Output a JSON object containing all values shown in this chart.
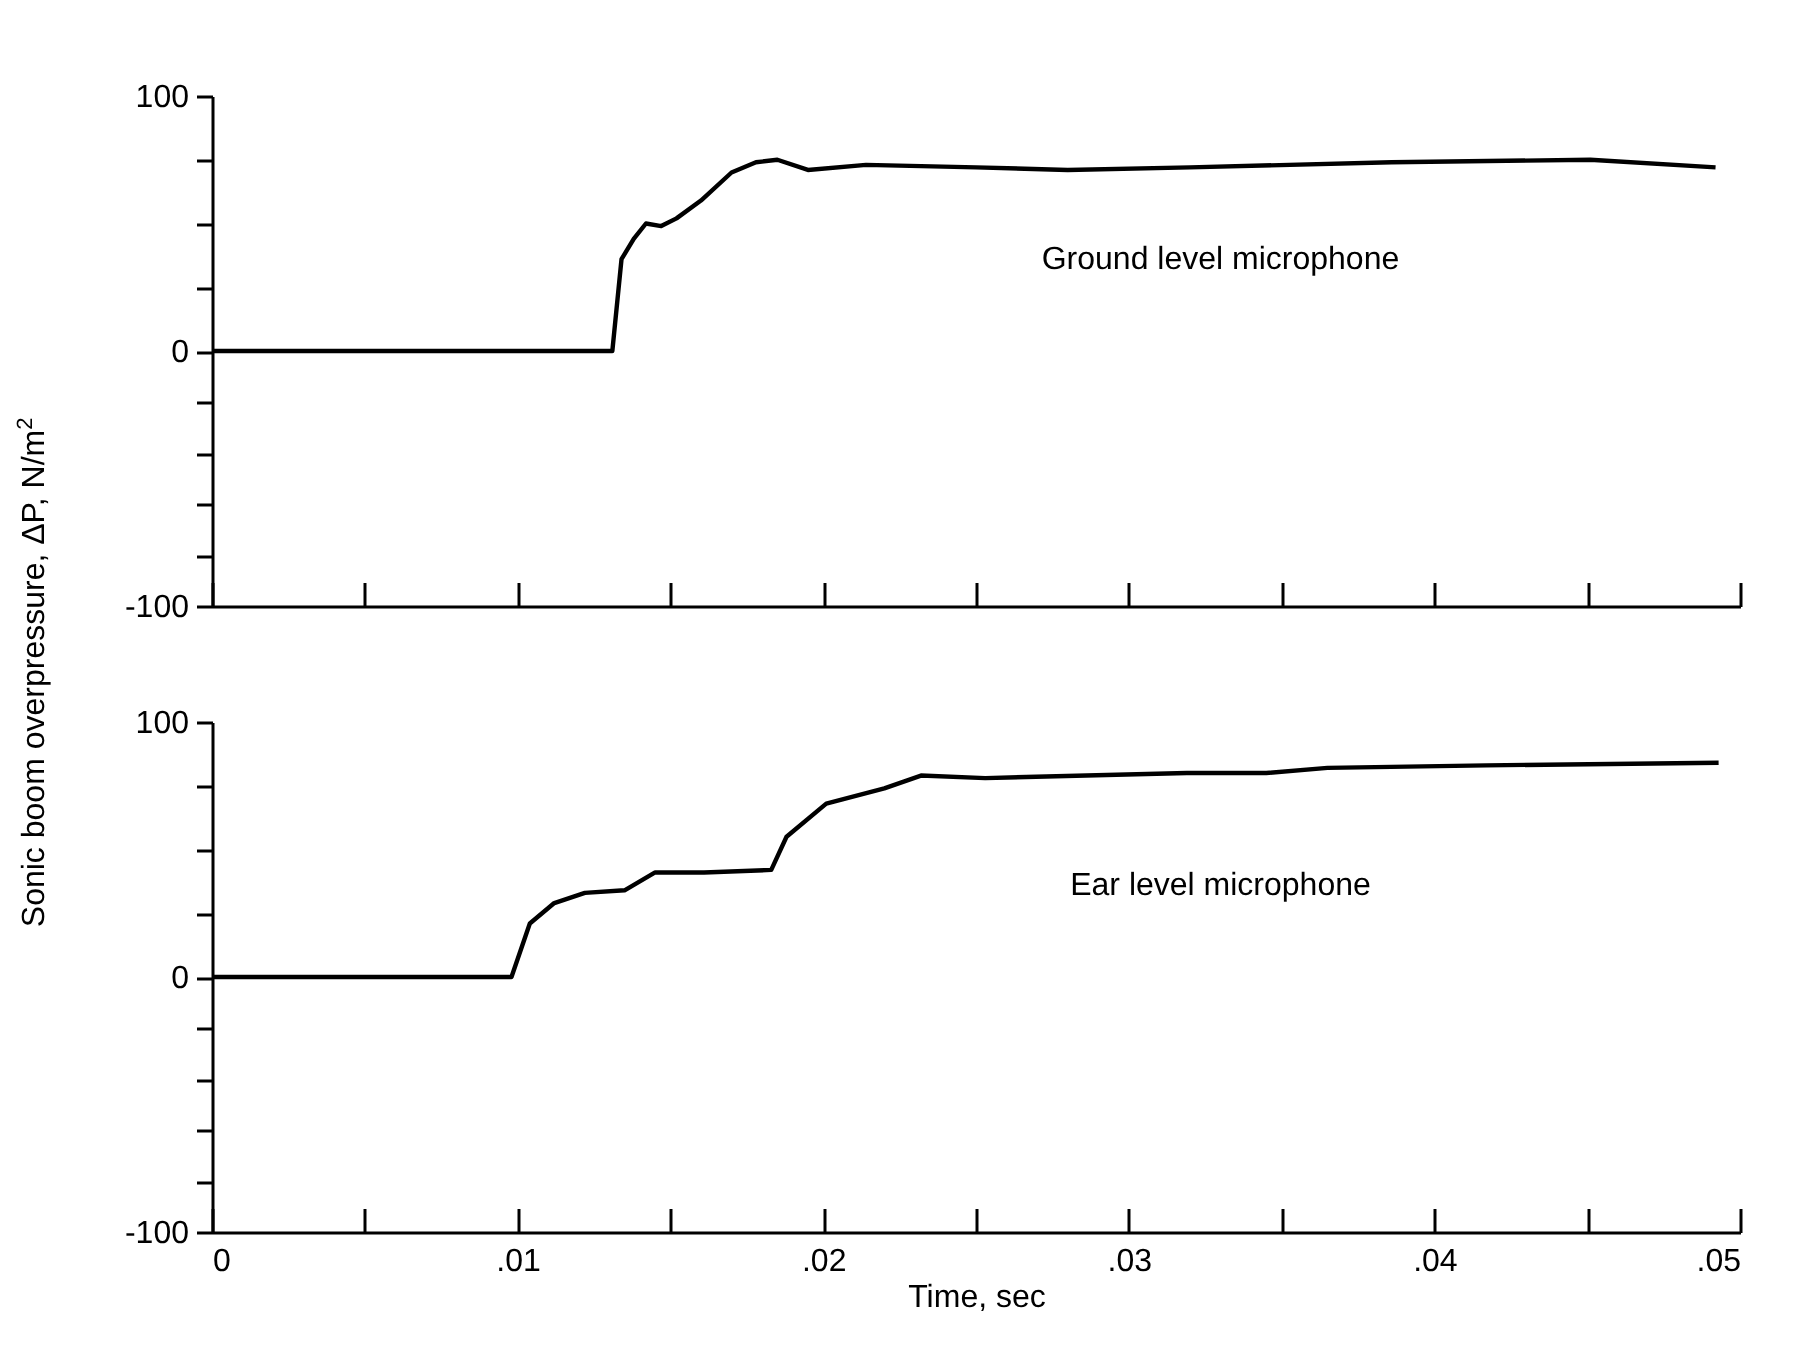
{
  "chart_data": [
    {
      "type": "line",
      "xlim": [
        0,
        0.05
      ],
      "ylim": [
        -100,
        100
      ],
      "xticks": [
        {
          "value": 0,
          "label": null
        },
        {
          "value": 0.005,
          "label": null
        },
        {
          "value": 0.01,
          "label": null
        },
        {
          "value": 0.015,
          "label": null
        },
        {
          "value": 0.02,
          "label": null
        },
        {
          "value": 0.025,
          "label": null
        },
        {
          "value": 0.03,
          "label": null
        },
        {
          "value": 0.035,
          "label": null
        },
        {
          "value": 0.04,
          "label": null
        },
        {
          "value": 0.045,
          "label": null
        },
        {
          "value": 0.05,
          "label": null
        }
      ],
      "yticks": [
        -100,
        {
          "value": -80,
          "label": null
        },
        {
          "value": -60,
          "label": null
        },
        {
          "value": -40,
          "label": null
        },
        {
          "value": -20,
          "label": null
        },
        0,
        {
          "value": 25,
          "label": null
        },
        {
          "value": 50,
          "label": null
        },
        {
          "value": 75,
          "label": null
        },
        100
      ],
      "tick_labels": "y",
      "ylabel": "Sonic boom overpressure, ΔP, N/m$^{2}$",
      "grid": false,
      "color": "#000000",
      "annotations": [
        "Ground level microphone"
      ],
      "x": [
        0,
        0.005,
        0.01,
        0.0131,
        0.0134,
        0.0138,
        0.0142,
        0.0147,
        0.0152,
        0.016,
        0.017,
        0.0178,
        0.0185,
        0.0195,
        0.0214,
        0.025,
        0.028,
        0.032,
        0.0386,
        0.0451,
        0.0492
      ],
      "values": [
        0,
        0,
        0,
        0,
        36,
        44,
        50,
        49,
        52,
        59,
        70,
        74,
        75,
        71,
        73,
        72,
        71,
        72,
        74,
        75,
        72
      ]
    },
    {
      "type": "line",
      "xlim": [
        0,
        0.05
      ],
      "ylim": [
        -100,
        100
      ],
      "xticks": [
        0,
        {
          "value": 0.005,
          "label": null
        },
        {
          "value": 0.01,
          "label": ".01"
        },
        {
          "value": 0.015,
          "label": null
        },
        {
          "value": 0.02,
          "label": ".02"
        },
        {
          "value": 0.025,
          "label": null
        },
        {
          "value": 0.03,
          "label": ".03"
        },
        {
          "value": 0.035,
          "label": null
        },
        {
          "value": 0.04,
          "label": ".04"
        },
        {
          "value": 0.045,
          "label": null
        },
        {
          "value": 0.05,
          "label": ".05"
        }
      ],
      "yticks": [
        -100,
        {
          "value": -80,
          "label": null
        },
        {
          "value": -60,
          "label": null
        },
        {
          "value": -40,
          "label": null
        },
        {
          "value": -20,
          "label": null
        },
        0,
        {
          "value": 25,
          "label": null
        },
        {
          "value": 50,
          "label": null
        },
        {
          "value": 75,
          "label": null
        },
        100
      ],
      "xlabel": "Time, sec",
      "grid": false,
      "color": "#000000",
      "annotations": [
        "Ear level microphone"
      ],
      "x": [
        0,
        0.005,
        0.0098,
        0.0104,
        0.0112,
        0.0122,
        0.0135,
        0.0145,
        0.0161,
        0.0183,
        0.0188,
        0.0201,
        0.022,
        0.0232,
        0.0253,
        0.0319,
        0.0345,
        0.0365,
        0.0417,
        0.0493
      ],
      "values": [
        0,
        0,
        0,
        21,
        29,
        33,
        34,
        41,
        41,
        42,
        55,
        68,
        74,
        79,
        78,
        80,
        80,
        82,
        83,
        84
      ]
    }
  ]
}
